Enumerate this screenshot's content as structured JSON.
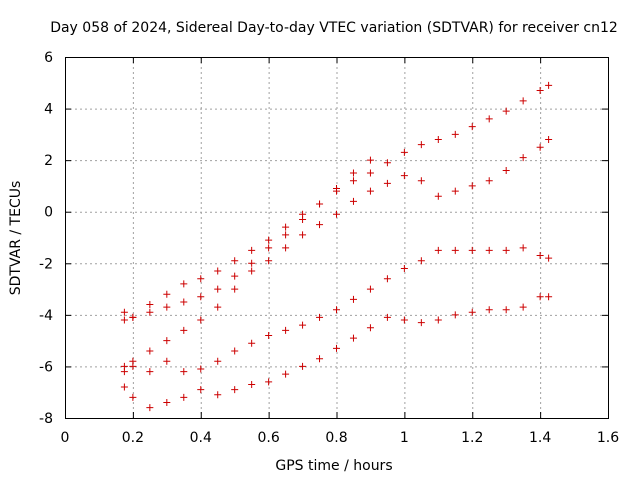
{
  "chart_data": {
    "type": "scatter",
    "title": "Day 058 of 2024, Sidereal Day-to-day VTEC variation (SDTVAR) for receiver cn12",
    "xlabel": "GPS time / hours",
    "ylabel": "SDTVAR / TECUs",
    "xlim": [
      0,
      1.6
    ],
    "ylim": [
      -8,
      6
    ],
    "x_ticks": [
      0,
      0.2,
      0.4,
      0.6,
      0.8,
      1,
      1.2,
      1.4,
      1.6
    ],
    "x_tick_labels": [
      "0",
      "0.2",
      "0.4",
      "0.6",
      "0.8",
      "1",
      "1.2",
      "1.4",
      "1.6"
    ],
    "y_ticks": [
      -8,
      -6,
      -4,
      -2,
      0,
      2,
      4,
      6
    ],
    "y_tick_labels": [
      "-8",
      "-6",
      "-4",
      "-2",
      "0",
      "2",
      "4",
      "6"
    ],
    "grid": true,
    "marker": "plus",
    "marker_color": "#cc0000",
    "series": [
      {
        "x": [
          0.175,
          0.2,
          0.25,
          0.3,
          0.35,
          0.4,
          0.45,
          0.5,
          0.55,
          0.6,
          0.65,
          0.7,
          0.75,
          0.8,
          0.85,
          0.9,
          0.95,
          1.0,
          1.05,
          1.1,
          1.15,
          1.2,
          1.25,
          1.3,
          1.35,
          1.4,
          1.425
        ],
        "y": [
          -4.2,
          -4.1,
          -3.6,
          -3.2,
          -2.8,
          -2.6,
          -2.3,
          -1.9,
          -1.5,
          -1.1,
          -0.6,
          -0.1,
          0.3,
          0.8,
          1.2,
          1.5,
          1.9,
          2.3,
          2.6,
          2.8,
          3.0,
          3.3,
          3.6,
          3.9,
          4.3,
          4.7,
          4.9
        ]
      },
      {
        "x": [
          0.175,
          0.2,
          0.25,
          0.3,
          0.35,
          0.4,
          0.45,
          0.5,
          0.55,
          0.6,
          0.65,
          0.7,
          0.75,
          0.8,
          0.85,
          0.9
        ],
        "y": [
          -3.9,
          -4.1,
          -3.9,
          -3.7,
          -3.5,
          -3.3,
          -3.0,
          -2.5,
          -2.0,
          -1.4,
          -0.9,
          -0.3,
          0.3,
          0.9,
          1.5,
          2.0
        ]
      },
      {
        "x": [
          0.175,
          0.2,
          0.25,
          0.3,
          0.35,
          0.4,
          0.45,
          0.5,
          0.55,
          0.6,
          0.65,
          0.7,
          0.75,
          0.8,
          0.85,
          0.9,
          0.95,
          1.0,
          1.05,
          1.1,
          1.15,
          1.2,
          1.25,
          1.3,
          1.35,
          1.4,
          1.425
        ],
        "y": [
          -6.2,
          -5.8,
          -5.4,
          -5.0,
          -4.6,
          -4.2,
          -3.7,
          -3.0,
          -2.3,
          -1.9,
          -1.4,
          -0.9,
          -0.5,
          -0.1,
          0.4,
          0.8,
          1.1,
          1.4,
          1.2,
          0.6,
          0.8,
          1.0,
          1.2,
          1.6,
          2.1,
          2.5,
          2.8
        ]
      },
      {
        "x": [
          0.175,
          0.2,
          0.25,
          0.3,
          0.35,
          0.4,
          0.45,
          0.5,
          0.55,
          0.6,
          0.65,
          0.7,
          0.75,
          0.8,
          0.85,
          0.9,
          0.95,
          1.0,
          1.05,
          1.1,
          1.15,
          1.2,
          1.25,
          1.3,
          1.35,
          1.4,
          1.425
        ],
        "y": [
          -6.0,
          -6.0,
          -6.2,
          -5.8,
          -6.2,
          -6.1,
          -5.8,
          -5.4,
          -5.1,
          -4.8,
          -4.6,
          -4.4,
          -4.1,
          -3.8,
          -3.4,
          -3.0,
          -2.6,
          -2.2,
          -1.9,
          -1.5,
          -1.5,
          -1.5,
          -1.5,
          -1.5,
          -1.4,
          -1.7,
          -1.8
        ]
      },
      {
        "x": [
          0.175,
          0.2,
          0.25,
          0.3,
          0.35,
          0.4,
          0.45,
          0.5,
          0.55,
          0.6,
          0.65,
          0.7,
          0.75,
          0.8,
          0.85,
          0.9,
          0.95,
          1.0,
          1.05,
          1.1,
          1.15,
          1.2,
          1.25,
          1.3,
          1.35,
          1.4,
          1.425
        ],
        "y": [
          -6.8,
          -7.2,
          -7.6,
          -7.4,
          -7.2,
          -6.9,
          -7.1,
          -6.9,
          -6.7,
          -6.6,
          -6.3,
          -6.0,
          -5.7,
          -5.3,
          -4.9,
          -4.5,
          -4.1,
          -4.2,
          -4.3,
          -4.2,
          -4.0,
          -3.9,
          -3.8,
          -3.8,
          -3.7,
          -3.3,
          -3.3
        ]
      }
    ]
  }
}
